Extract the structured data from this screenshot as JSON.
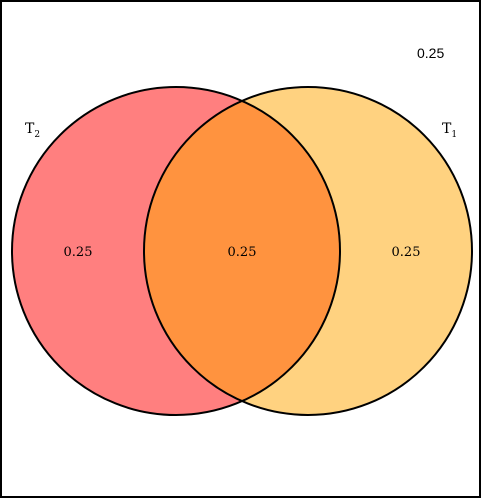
{
  "venn": {
    "outside_value": "0.25",
    "sets": [
      {
        "base": "T",
        "subscript": "2",
        "only_value": "0.25",
        "color": "#ff7f7f"
      },
      {
        "base": "T",
        "subscript": "1",
        "only_value": "0.25",
        "color": "#ffd280"
      }
    ],
    "intersection_value": "0.25",
    "intersection_color": "#ff933f"
  }
}
